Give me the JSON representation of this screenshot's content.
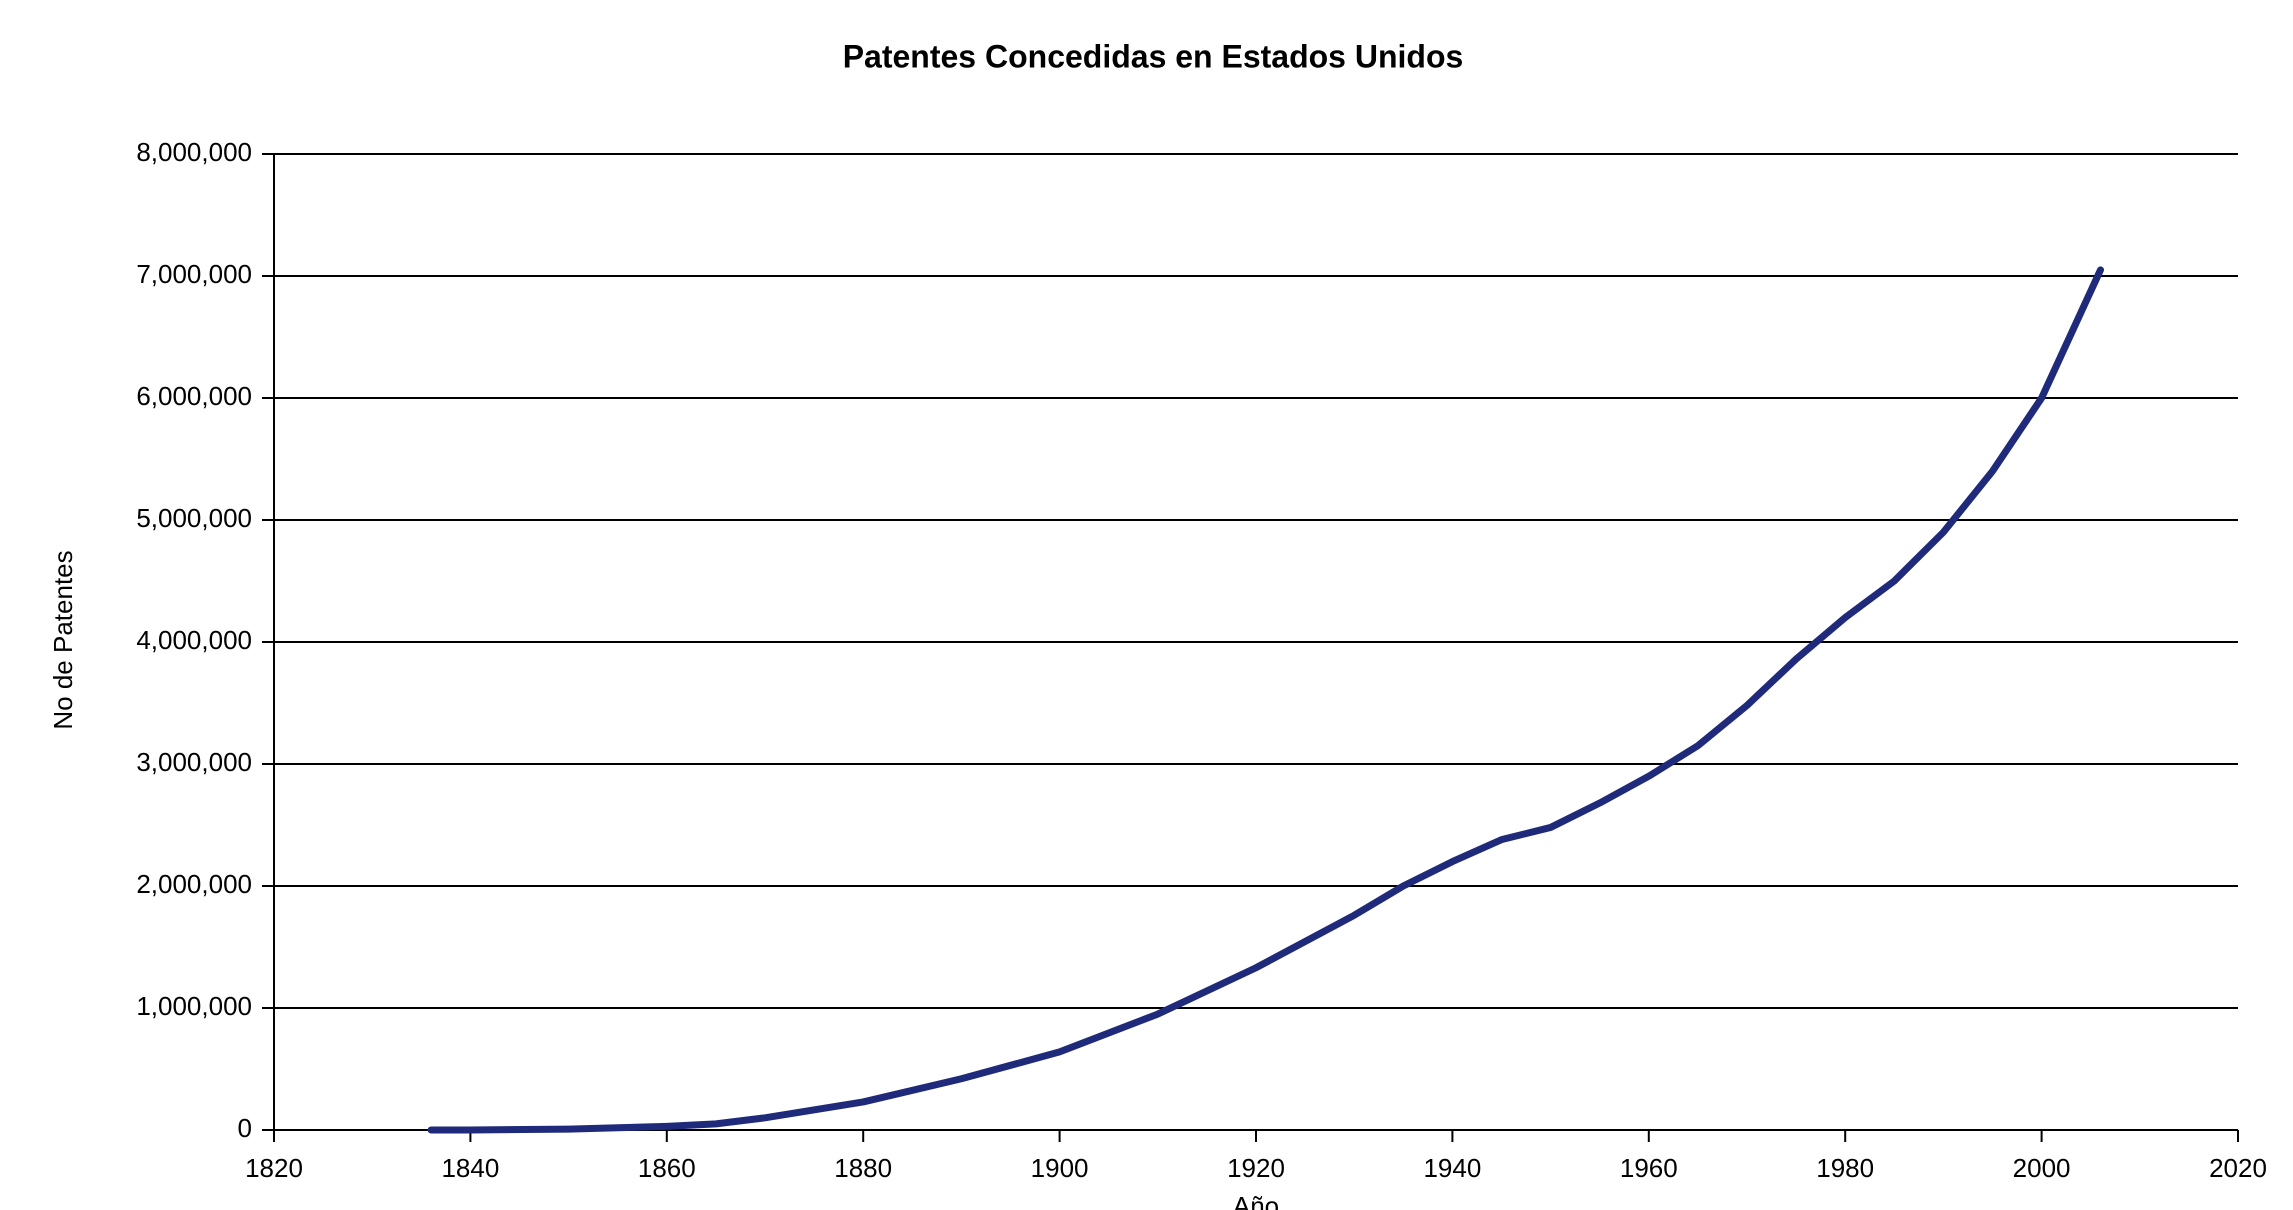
{
  "chart_data": {
    "type": "line",
    "title": "Patentes Concedidas en Estados Unidos",
    "x_label": "Año",
    "y_label": "No de Patentes",
    "x": [
      1836,
      1840,
      1850,
      1860,
      1865,
      1870,
      1880,
      1890,
      1900,
      1910,
      1920,
      1930,
      1935,
      1940,
      1945,
      1950,
      1955,
      1960,
      1965,
      1970,
      1975,
      1980,
      1985,
      1990,
      1995,
      2000,
      2006
    ],
    "series": [
      {
        "name": "Patentes",
        "color": "#1f2a7a",
        "values": [
          0,
          400,
          7000,
          30000,
          50000,
          100000,
          230000,
          420000,
          640000,
          950000,
          1330000,
          1760000,
          2000000,
          2200000,
          2380000,
          2480000,
          2680000,
          2900000,
          3150000,
          3480000,
          3860000,
          4200000,
          4500000,
          4900000,
          5400000,
          6000000,
          7050000
        ]
      }
    ],
    "xlim": [
      1820,
      2020
    ],
    "xticks": [
      1820,
      1840,
      1860,
      1880,
      1900,
      1920,
      1940,
      1960,
      1980,
      2000,
      2020
    ],
    "ylim": [
      0,
      8000000
    ],
    "yticks": [
      0,
      {
        "value": 1000000,
        "label": "1,000,000"
      },
      {
        "value": 2000000,
        "label": "2,000,000"
      },
      {
        "value": 3000000,
        "label": "3,000,000"
      },
      {
        "value": 4000000,
        "label": "4,000,000"
      },
      {
        "value": 5000000,
        "label": "5,000,000"
      },
      {
        "value": 6000000,
        "label": "6,000,000"
      },
      {
        "value": 7000000,
        "label": "7,000,000"
      },
      {
        "value": 8000000,
        "label": "8,000,000"
      }
    ],
    "grid": true
  }
}
